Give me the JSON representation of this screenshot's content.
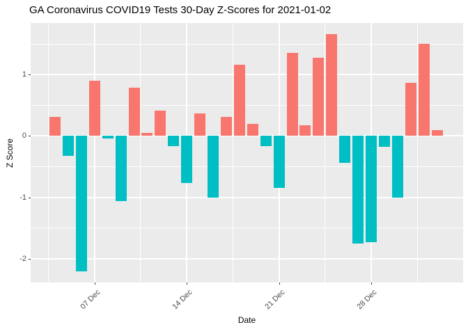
{
  "title": "GA Coronavirus COVID19 Tests 30-Day Z-Scores for 2021-01-02",
  "chart_data": {
    "type": "bar",
    "title": "GA Coronavirus COVID19 Tests 30-Day Z-Scores for 2021-01-02",
    "xlabel": "Date",
    "ylabel": "Z Score",
    "x": [
      "2020-12-04",
      "2020-12-05",
      "2020-12-06",
      "2020-12-07",
      "2020-12-08",
      "2020-12-09",
      "2020-12-10",
      "2020-12-11",
      "2020-12-12",
      "2020-12-13",
      "2020-12-14",
      "2020-12-15",
      "2020-12-16",
      "2020-12-17",
      "2020-12-18",
      "2020-12-19",
      "2020-12-20",
      "2020-12-21",
      "2020-12-22",
      "2020-12-23",
      "2020-12-24",
      "2020-12-25",
      "2020-12-26",
      "2020-12-27",
      "2020-12-28",
      "2020-12-29",
      "2020-12-30",
      "2020-12-31",
      "2021-01-01",
      "2021-01-02"
    ],
    "values": [
      0.31,
      -0.32,
      -2.21,
      0.9,
      -0.04,
      -1.06,
      0.79,
      0.05,
      0.41,
      -0.17,
      -0.77,
      0.37,
      -1.0,
      0.31,
      1.16,
      0.2,
      -0.16,
      -0.84,
      1.35,
      0.18,
      1.28,
      1.66,
      -0.44,
      -1.75,
      -1.73,
      -0.18,
      -1.0,
      0.87,
      1.5,
      0.1
    ],
    "color_rule": "fill by sign of z-score",
    "colors": {
      "positive": "#F8766D",
      "negative": "#00BFC4"
    },
    "ylim": [
      -2.387,
      1.842
    ],
    "yticks": {
      "major": [
        1,
        0,
        -1,
        -2
      ],
      "minor": [
        1.5,
        0.5,
        -0.5,
        -1.5
      ],
      "labels": [
        "1",
        "0",
        "-1",
        "-2"
      ]
    },
    "xticks": [
      {
        "label": "07 Dec",
        "index": 3
      },
      {
        "label": "14 Dec",
        "index": 10
      },
      {
        "label": "21 Dec",
        "index": 17
      },
      {
        "label": "28 Dec",
        "index": 24
      }
    ],
    "xminor_indices": [
      -0.5,
      6.5,
      13.5,
      20.5,
      27.5
    ],
    "grid": true,
    "legend": "none",
    "panel_bg": "#EBEBEB",
    "grid_color": "#FFFFFF",
    "axis_text_color": "#4D4D4D",
    "tick_color": "#333333"
  }
}
